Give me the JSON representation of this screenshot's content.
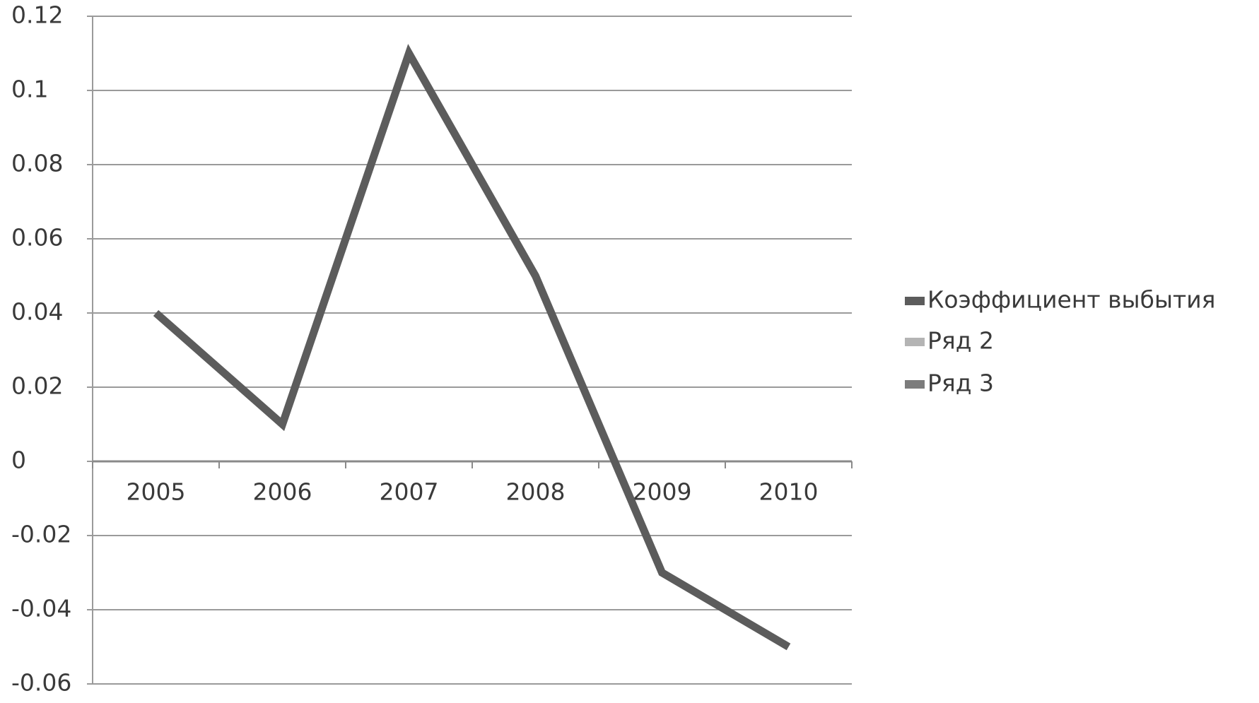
{
  "chart_data": {
    "type": "line",
    "categories": [
      "2005",
      "2006",
      "2007",
      "2008",
      "2009",
      "2010"
    ],
    "series": [
      {
        "name": "Коэффициент выбытия",
        "color": "#5c5c5c",
        "values": [
          0.04,
          0.01,
          0.11,
          0.05,
          -0.03,
          -0.05
        ]
      },
      {
        "name": "Ряд 2",
        "color": "#b4b4b4",
        "values": [
          null,
          null,
          null,
          null,
          null,
          null
        ]
      },
      {
        "name": "Ряд 3",
        "color": "#7c7c7c",
        "values": [
          null,
          null,
          null,
          null,
          null,
          null
        ]
      }
    ],
    "ylim": [
      -0.06,
      0.12
    ],
    "yticks": [
      -0.06,
      -0.04,
      -0.02,
      0,
      0.02,
      0.04,
      0.06,
      0.08,
      0.1,
      0.12
    ],
    "grid": true,
    "legend": "right"
  }
}
